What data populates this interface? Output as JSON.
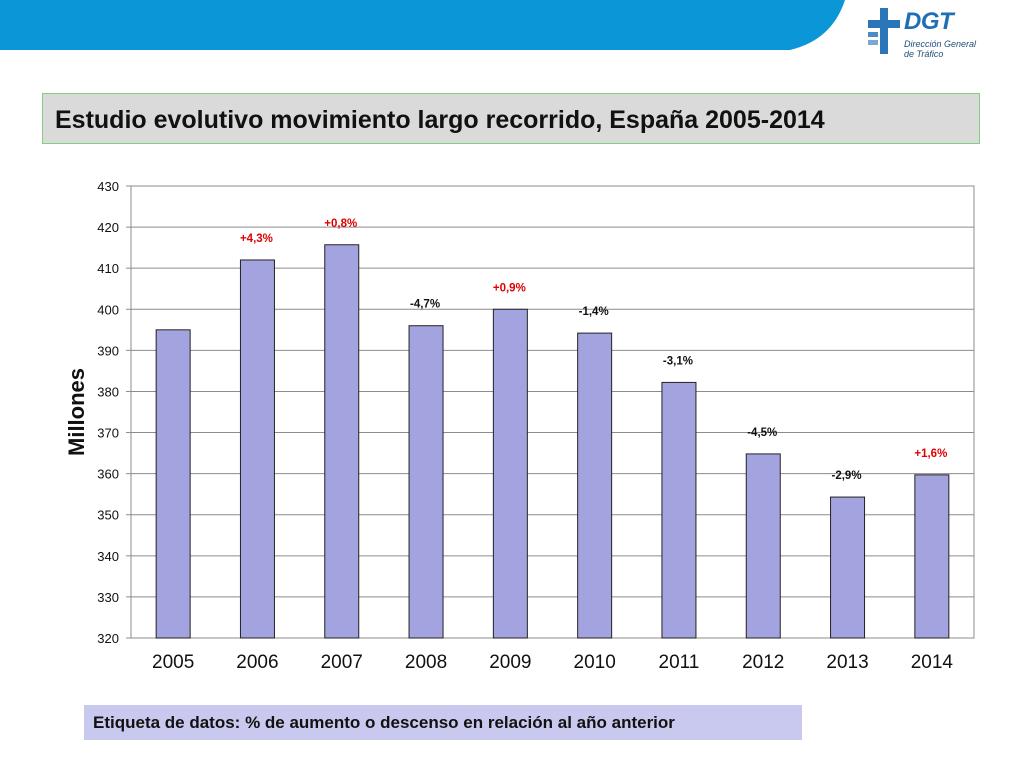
{
  "header": {
    "banner_color": "#0b96d8",
    "logo": {
      "icon": "dgt-logo-icon",
      "wordmark": "DGT",
      "subtitle_line1": "Dirección General",
      "subtitle_line2": "de Tráfico",
      "color": "#1f6fb5"
    }
  },
  "title": "Estudio evolutivo movimiento largo recorrido, España 2005-2014",
  "chart_data": {
    "type": "bar",
    "ylabel": "Millones",
    "xlabel": "",
    "ylim": [
      320,
      430
    ],
    "yticks": [
      320,
      330,
      340,
      350,
      360,
      370,
      380,
      390,
      400,
      410,
      420,
      430
    ],
    "grid": true,
    "legend": "none",
    "bar_color": "#a3a3df",
    "categories": [
      "2005",
      "2006",
      "2007",
      "2008",
      "2009",
      "2010",
      "2011",
      "2012",
      "2013",
      "2014"
    ],
    "values": [
      395,
      412,
      415.7,
      396,
      400,
      394.2,
      382.2,
      364.8,
      354.3,
      359.7
    ],
    "data_labels": [
      "",
      "+4,3%",
      "+0,8%",
      "-4,7%",
      "+0,9%",
      "-1,4%",
      "-3,1%",
      "-4,5%",
      "-2,9%",
      "+1,6%"
    ],
    "label_colors": {
      "increase": "#e00000",
      "decrease": "#111111"
    }
  },
  "footnote": "Etiqueta de datos: % de aumento o descenso en relación al año anterior"
}
